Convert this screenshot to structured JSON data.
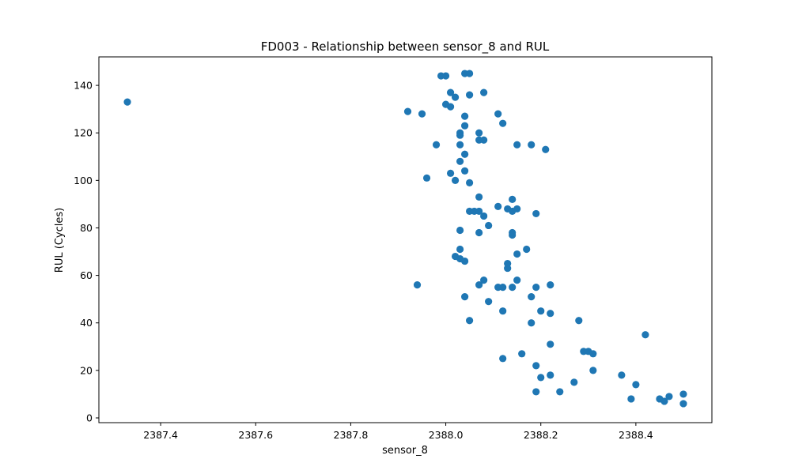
{
  "chart_data": {
    "type": "scatter",
    "title": "FD003 - Relationship between sensor_8 and RUL",
    "xlabel": "sensor_8",
    "ylabel": "RUL (Cycles)",
    "xlim": [
      2387.27,
      2388.56
    ],
    "ylim": [
      -2,
      152
    ],
    "xticks": [
      2387.4,
      2387.6,
      2387.8,
      2388.0,
      2388.2,
      2388.4
    ],
    "xtick_labels": [
      "2387.4",
      "2387.6",
      "2387.8",
      "2388.0",
      "2388.2",
      "2388.4"
    ],
    "yticks": [
      0,
      20,
      40,
      60,
      80,
      100,
      120,
      140
    ],
    "ytick_labels": [
      "0",
      "20",
      "40",
      "60",
      "80",
      "100",
      "120",
      "140"
    ],
    "grid": false,
    "marker_color": "#1f77b4",
    "points": [
      [
        2387.33,
        133
      ],
      [
        2387.92,
        129
      ],
      [
        2387.95,
        128
      ],
      [
        2387.94,
        56
      ],
      [
        2387.96,
        101
      ],
      [
        2387.98,
        115
      ],
      [
        2387.99,
        144
      ],
      [
        2388.0,
        144
      ],
      [
        2388.0,
        132
      ],
      [
        2388.01,
        137
      ],
      [
        2388.01,
        131
      ],
      [
        2388.01,
        103
      ],
      [
        2388.02,
        135
      ],
      [
        2388.02,
        100
      ],
      [
        2388.02,
        68
      ],
      [
        2388.03,
        120
      ],
      [
        2388.03,
        119
      ],
      [
        2388.03,
        115
      ],
      [
        2388.03,
        108
      ],
      [
        2388.03,
        79
      ],
      [
        2388.03,
        71
      ],
      [
        2388.03,
        67
      ],
      [
        2388.04,
        145
      ],
      [
        2388.04,
        127
      ],
      [
        2388.04,
        123
      ],
      [
        2388.04,
        111
      ],
      [
        2388.04,
        104
      ],
      [
        2388.04,
        66
      ],
      [
        2388.04,
        51
      ],
      [
        2388.05,
        145
      ],
      [
        2388.05,
        136
      ],
      [
        2388.05,
        99
      ],
      [
        2388.05,
        87
      ],
      [
        2388.05,
        41
      ],
      [
        2388.06,
        87
      ],
      [
        2388.07,
        120
      ],
      [
        2388.07,
        117
      ],
      [
        2388.07,
        93
      ],
      [
        2388.07,
        87
      ],
      [
        2388.07,
        78
      ],
      [
        2388.07,
        56
      ],
      [
        2388.08,
        137
      ],
      [
        2388.08,
        117
      ],
      [
        2388.08,
        85
      ],
      [
        2388.08,
        58
      ],
      [
        2388.09,
        81
      ],
      [
        2388.09,
        49
      ],
      [
        2388.11,
        128
      ],
      [
        2388.11,
        89
      ],
      [
        2388.11,
        55
      ],
      [
        2388.12,
        124
      ],
      [
        2388.12,
        55
      ],
      [
        2388.12,
        45
      ],
      [
        2388.12,
        25
      ],
      [
        2388.13,
        88
      ],
      [
        2388.13,
        65
      ],
      [
        2388.13,
        63
      ],
      [
        2388.14,
        92
      ],
      [
        2388.14,
        87
      ],
      [
        2388.14,
        78
      ],
      [
        2388.14,
        77
      ],
      [
        2388.14,
        55
      ],
      [
        2388.15,
        115
      ],
      [
        2388.15,
        88
      ],
      [
        2388.15,
        69
      ],
      [
        2388.15,
        58
      ],
      [
        2388.16,
        27
      ],
      [
        2388.17,
        71
      ],
      [
        2388.18,
        115
      ],
      [
        2388.18,
        51
      ],
      [
        2388.18,
        40
      ],
      [
        2388.19,
        86
      ],
      [
        2388.19,
        55
      ],
      [
        2388.19,
        22
      ],
      [
        2388.19,
        11
      ],
      [
        2388.2,
        45
      ],
      [
        2388.2,
        17
      ],
      [
        2388.21,
        113
      ],
      [
        2388.22,
        56
      ],
      [
        2388.22,
        44
      ],
      [
        2388.22,
        31
      ],
      [
        2388.22,
        18
      ],
      [
        2388.24,
        11
      ],
      [
        2388.27,
        15
      ],
      [
        2388.28,
        41
      ],
      [
        2388.29,
        28
      ],
      [
        2388.3,
        28
      ],
      [
        2388.31,
        27
      ],
      [
        2388.31,
        20
      ],
      [
        2388.37,
        18
      ],
      [
        2388.39,
        8
      ],
      [
        2388.4,
        14
      ],
      [
        2388.42,
        35
      ],
      [
        2388.45,
        8
      ],
      [
        2388.46,
        7
      ],
      [
        2388.47,
        9
      ],
      [
        2388.5,
        10
      ],
      [
        2388.5,
        6
      ]
    ]
  }
}
